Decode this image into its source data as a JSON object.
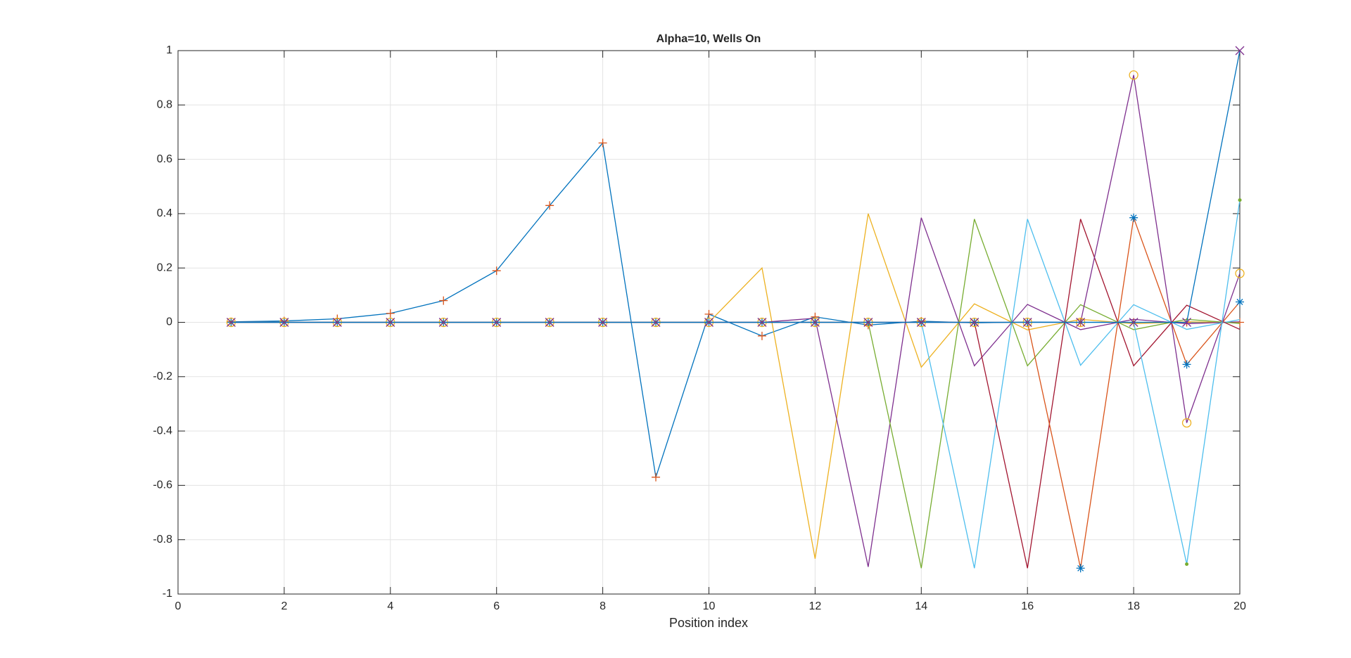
{
  "chart_data": {
    "type": "line",
    "title": "Alpha=10, Wells On",
    "xlabel": "Position index",
    "x": [
      1,
      2,
      3,
      4,
      5,
      6,
      7,
      8,
      9,
      10,
      11,
      12,
      13,
      14,
      15,
      16,
      17,
      18,
      19,
      20
    ],
    "xlim": [
      0,
      20
    ],
    "ylim": [
      -1,
      1
    ],
    "xticks": [
      0,
      2,
      4,
      6,
      8,
      10,
      12,
      14,
      16,
      18,
      20
    ],
    "yticks": [
      -1,
      -0.8,
      -0.6,
      -0.4,
      -0.2,
      0,
      0.2,
      0.4,
      0.6,
      0.8,
      1
    ],
    "grid": true,
    "series": [
      {
        "color": "#0072BD",
        "marker": "+",
        "marker_color": "#D95319",
        "values": [
          0.002,
          0.005,
          0.013,
          0.033,
          0.08,
          0.19,
          0.43,
          0.66,
          -0.57,
          0.03,
          -0.05,
          0.02,
          -0.01,
          0.004,
          -0.002,
          0.001,
          0,
          0,
          0,
          0
        ]
      },
      {
        "color": "#EDB120",
        "values": [
          0,
          0,
          0,
          0,
          0,
          0,
          0,
          0,
          0,
          0,
          0.2,
          -0.87,
          0.4,
          -0.165,
          0.068,
          -0.028,
          0.011,
          -0.005,
          0.002,
          -0.001
        ]
      },
      {
        "color": "#7E2F8E",
        "values": [
          0,
          0,
          0,
          0,
          0,
          0,
          0,
          0,
          0,
          0,
          0,
          0.015,
          -0.9,
          0.385,
          -0.16,
          0.066,
          -0.027,
          0.011,
          -0.005,
          0.002
        ]
      },
      {
        "color": "#77AC30",
        "values": [
          0,
          0,
          0,
          0,
          0,
          0,
          0,
          0,
          0,
          0,
          0,
          0,
          0,
          -0.905,
          0.38,
          -0.16,
          0.065,
          -0.027,
          0.011,
          -0.004
        ]
      },
      {
        "color": "#4DBEEE",
        "values": [
          0,
          0,
          0,
          0,
          0,
          0,
          0,
          0,
          0,
          0,
          0,
          0,
          0,
          0,
          -0.905,
          0.38,
          -0.158,
          0.065,
          -0.026,
          0.01
        ]
      },
      {
        "color": "#A2142F",
        "values": [
          0,
          0,
          0,
          0,
          0,
          0,
          0,
          0,
          0,
          0,
          0,
          0,
          0,
          0,
          0,
          -0.905,
          0.38,
          -0.16,
          0.063,
          -0.026
        ]
      },
      {
        "color": "#D95319",
        "marker": "*",
        "marker_color": "#0072BD",
        "values": [
          0,
          0,
          0,
          0,
          0,
          0,
          0,
          0,
          0,
          0,
          0,
          0,
          0,
          0,
          0,
          0,
          -0.905,
          0.385,
          -0.155,
          0.075
        ]
      },
      {
        "color": "#7E2F8E",
        "marker": "o",
        "marker_color": "#EDB120",
        "values": [
          0,
          0,
          0,
          0,
          0,
          0,
          0,
          0,
          0,
          0,
          0,
          0,
          0,
          0,
          0,
          0,
          0,
          0.91,
          -0.37,
          0.18
        ]
      },
      {
        "color": "#4DBEEE",
        "marker": ".",
        "marker_color": "#77AC30",
        "values": [
          0,
          0,
          0,
          0,
          0,
          0,
          0,
          0,
          0,
          0,
          0,
          0,
          0,
          0,
          0,
          0,
          0,
          0,
          -0.89,
          0.45
        ]
      },
      {
        "color": "#0072BD",
        "marker": "x",
        "marker_color": "#7E2F8E",
        "values": [
          0,
          0,
          0,
          0,
          0,
          0,
          0,
          0,
          0,
          0,
          0,
          0,
          0,
          0,
          0,
          0,
          0,
          0,
          0,
          1
        ]
      }
    ]
  }
}
